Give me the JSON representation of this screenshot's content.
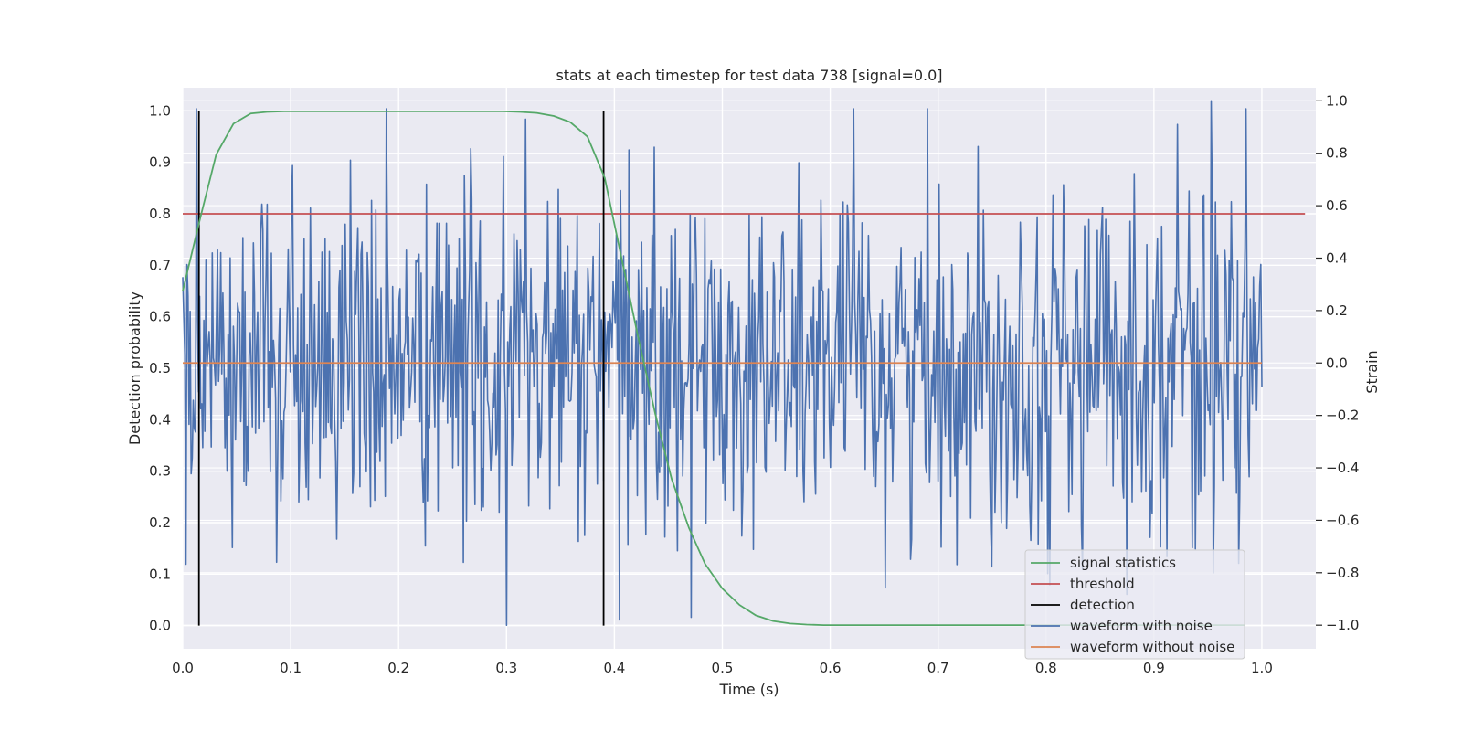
{
  "chart_data": {
    "type": "line",
    "title": "stats at each timestep for test data 738 [signal=0.0]",
    "xlabel": "Time (s)",
    "ylabel_left": "Detection probability",
    "ylabel_right": "Strain",
    "xlim": [
      0.0,
      1.05
    ],
    "ylim_left": [
      -0.045,
      1.045
    ],
    "ylim_right": [
      -1.09,
      1.05
    ],
    "x_ticks": [
      0.0,
      0.1,
      0.2,
      0.3,
      0.4,
      0.5,
      0.6,
      0.7,
      0.8,
      0.9,
      1.0
    ],
    "x_tick_labels": [
      "0.0",
      "0.1",
      "0.2",
      "0.3",
      "0.4",
      "0.5",
      "0.6",
      "0.7",
      "0.8",
      "0.9",
      "1.0"
    ],
    "y_left_ticks": [
      0.0,
      0.1,
      0.2,
      0.3,
      0.4,
      0.5,
      0.6,
      0.7,
      0.8,
      0.9,
      1.0
    ],
    "y_left_tick_labels": [
      "0.0",
      "0.1",
      "0.2",
      "0.3",
      "0.4",
      "0.5",
      "0.6",
      "0.7",
      "0.8",
      "0.9",
      "1.0"
    ],
    "y_right_ticks": [
      -1.0,
      -0.8,
      -0.6,
      -0.4,
      -0.2,
      0.0,
      0.2,
      0.4,
      0.6,
      0.8,
      1.0
    ],
    "y_right_tick_labels": [
      "−1.0",
      "−0.8",
      "−0.6",
      "−0.4",
      "−0.2",
      "0.0",
      "0.2",
      "0.4",
      "0.6",
      "0.8",
      "1.0"
    ],
    "grid": true,
    "legend_position": "lower-right",
    "series": [
      {
        "name": "signal statistics",
        "axis": "left",
        "color": "#55a868",
        "x": [
          0.0,
          0.016,
          0.031,
          0.047,
          0.063,
          0.078,
          0.094,
          0.109,
          0.125,
          0.141,
          0.156,
          0.172,
          0.188,
          0.203,
          0.219,
          0.234,
          0.25,
          0.266,
          0.281,
          0.297,
          0.313,
          0.328,
          0.344,
          0.359,
          0.375,
          0.391,
          0.406,
          0.422,
          0.438,
          0.453,
          0.469,
          0.484,
          0.5,
          0.516,
          0.531,
          0.547,
          0.563,
          0.578,
          0.594,
          0.609,
          0.625,
          0.641,
          0.656,
          0.672,
          0.688,
          0.703,
          0.719,
          0.734,
          0.75,
          0.766,
          0.781,
          0.797,
          0.813,
          0.828,
          0.844,
          0.859,
          0.875,
          0.891,
          0.906,
          0.922,
          0.938,
          0.953,
          0.969,
          0.984
        ],
        "y": [
          0.65,
          0.79,
          0.915,
          0.975,
          0.995,
          0.998,
          0.999,
          0.999,
          0.999,
          0.999,
          0.999,
          0.999,
          0.999,
          0.999,
          0.999,
          0.999,
          0.999,
          0.999,
          0.999,
          0.999,
          0.998,
          0.996,
          0.99,
          0.978,
          0.95,
          0.87,
          0.72,
          0.56,
          0.41,
          0.285,
          0.19,
          0.12,
          0.072,
          0.04,
          0.02,
          0.009,
          0.004,
          0.002,
          0.001,
          0.001,
          0.001,
          0.001,
          0.001,
          0.001,
          0.001,
          0.001,
          0.001,
          0.001,
          0.001,
          0.001,
          0.001,
          0.001,
          0.001,
          0.001,
          0.001,
          0.001,
          0.001,
          0.001,
          0.001,
          0.001,
          0.001,
          0.001,
          0.001,
          0.001
        ]
      },
      {
        "name": "threshold",
        "axis": "left",
        "color": "#c44e52",
        "x": [
          0.0,
          1.04
        ],
        "y": [
          0.8,
          0.8
        ]
      },
      {
        "name": "detection",
        "axis": "left",
        "color": "#000000",
        "segments": [
          {
            "x": 0.015,
            "y": [
              0.0,
              1.0
            ]
          },
          {
            "x": 0.39,
            "y": [
              0.0,
              1.0
            ]
          }
        ]
      },
      {
        "name": "waveform with noise",
        "axis": "right",
        "color": "#4c72b0",
        "x_start": 0.0,
        "x_end": 1.0,
        "samples": 1024,
        "y_summary": {
          "min": -1.0,
          "max": 1.0,
          "mean": 0.0
        },
        "y_peaks": [
          {
            "x": 0.318,
            "y": 0.93
          },
          {
            "x": 0.3,
            "y": -1.0
          },
          {
            "x": 0.405,
            "y": -0.98
          },
          {
            "x": 0.953,
            "y": 1.0
          },
          {
            "x": 0.922,
            "y": 0.91
          },
          {
            "x": 0.087,
            "y": -0.76
          }
        ]
      },
      {
        "name": "waveform without noise",
        "axis": "right",
        "color": "#dd8452",
        "x": [
          0.0,
          1.0
        ],
        "y": [
          0.0,
          0.0
        ]
      }
    ]
  }
}
